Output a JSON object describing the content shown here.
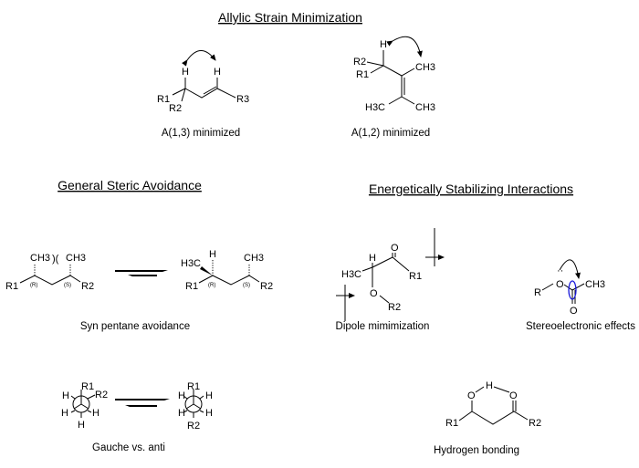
{
  "sections": {
    "allylic": {
      "title": "Allylic Strain Minimization",
      "a13_caption": "A(1,3) minimized",
      "a12_caption": "A(1,2) minimized"
    },
    "steric": {
      "title": "General Steric Avoidance",
      "syn_caption": "Syn pentane avoidance",
      "gauche_caption": "Gauche vs. anti"
    },
    "stabilizing": {
      "title": "Energetically Stabilizing Interactions",
      "dipole_caption": "Dipole mimimization",
      "stereo_caption": "Stereoelectronic effects",
      "hbond_caption": "Hydrogen bonding"
    }
  },
  "atoms": {
    "H": "H",
    "R1": "R1",
    "R2": "R2",
    "R3": "R3",
    "R": "R",
    "O": "O",
    "CH3": "CH3",
    "H3C": "H3C",
    "lone_pair": "··",
    "stereo_R": "(R)",
    "stereo_S": "(S)",
    "clash": ")("
  },
  "colors": {
    "orbital": "#1a1adb",
    "ink": "#000000"
  }
}
